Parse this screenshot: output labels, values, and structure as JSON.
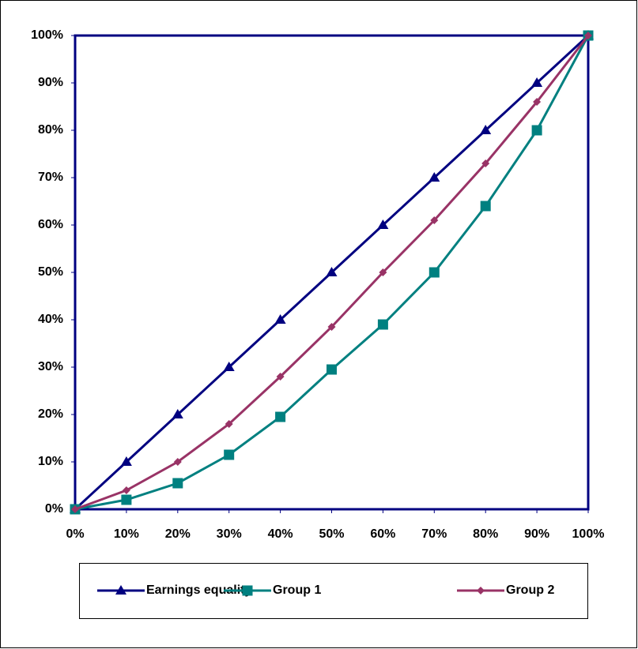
{
  "chart_data": {
    "type": "line",
    "x": [
      0,
      10,
      20,
      30,
      40,
      50,
      60,
      70,
      80,
      90,
      100
    ],
    "series": [
      {
        "name": "Earnings equality",
        "color": "#000080",
        "marker": "triangle",
        "values": [
          0,
          10,
          20,
          30,
          40,
          50,
          60,
          70,
          80,
          90,
          100
        ]
      },
      {
        "name": "Group 1",
        "color": "#008080",
        "marker": "square",
        "values": [
          0,
          2,
          5.5,
          11.5,
          19.5,
          29.5,
          39,
          50,
          64,
          80,
          100
        ]
      },
      {
        "name": "Group 2",
        "color": "#993366",
        "marker": "diamond",
        "values": [
          0,
          4,
          10,
          18,
          28,
          38.5,
          50,
          61,
          73,
          86,
          100
        ]
      }
    ],
    "xlim": [
      0,
      100
    ],
    "xticks": [
      {
        "value": 0,
        "label": "0%"
      },
      {
        "value": 10,
        "label": "10%"
      },
      {
        "value": 20,
        "label": "20%"
      },
      {
        "value": 30,
        "label": "30%"
      },
      {
        "value": 40,
        "label": "40%"
      },
      {
        "value": 50,
        "label": "50%"
      },
      {
        "value": 60,
        "label": "60%"
      },
      {
        "value": 70,
        "label": "70%"
      },
      {
        "value": 80,
        "label": "80%"
      },
      {
        "value": 90,
        "label": "90%"
      },
      {
        "value": 100,
        "label": "100%"
      }
    ],
    "ylim": [
      0,
      100
    ],
    "yticks": [
      {
        "value": 0,
        "label": "0%"
      },
      {
        "value": 10,
        "label": "10%"
      },
      {
        "value": 20,
        "label": "20%"
      },
      {
        "value": 30,
        "label": "30%"
      },
      {
        "value": 40,
        "label": "40%"
      },
      {
        "value": 50,
        "label": "50%"
      },
      {
        "value": 60,
        "label": "60%"
      },
      {
        "value": 70,
        "label": "70%"
      },
      {
        "value": 80,
        "label": "80%"
      },
      {
        "value": 90,
        "label": "90%"
      },
      {
        "value": 100,
        "label": "100%"
      }
    ],
    "grid": false,
    "legend": "bottom"
  }
}
